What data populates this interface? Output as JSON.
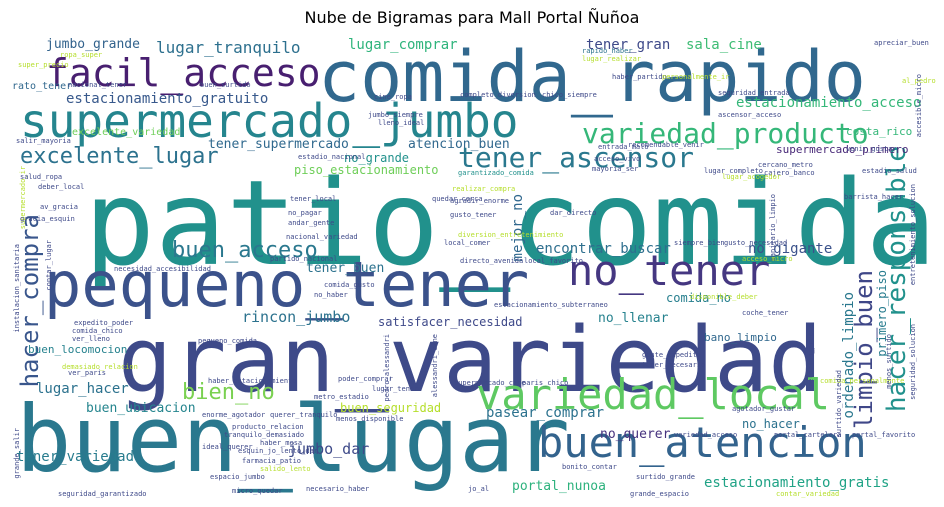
{
  "title": "Nube de Bigramas para Mall Portal Ñuñoa",
  "colors": {
    "background": "#ffffff",
    "palette": [
      "#440154",
      "#482878",
      "#3e4989",
      "#31688e",
      "#26828e",
      "#1f9e89",
      "#35b779",
      "#6ece58",
      "#b5de2b",
      "#fde725"
    ]
  },
  "words": [
    {
      "text": "patio_comida",
      "color": "#21918c"
    },
    {
      "text": "gran_variedad",
      "color": "#3e4a89"
    },
    {
      "text": "buen_lugar",
      "color": "#2a788e"
    },
    {
      "text": "comida_rapido",
      "color": "#31688e"
    },
    {
      "text": "pequeno_tener",
      "color": "#3b528b"
    },
    {
      "text": "supermercado_jumbo",
      "color": "#25858e"
    },
    {
      "text": "variedad_local",
      "color": "#5ec962"
    },
    {
      "text": "no_tener",
      "color": "#453781"
    },
    {
      "text": "buen_atencion",
      "color": "#33638d"
    },
    {
      "text": "facil_acceso",
      "color": "#481f70"
    },
    {
      "text": "variedad_producto",
      "color": "#35b779"
    },
    {
      "text": "tener_ascensor",
      "color": "#2a788e"
    },
    {
      "text": "hacer_responsable",
      "color": "#21918c"
    },
    {
      "text": "limpio_buen",
      "color": "#3f4788"
    },
    {
      "text": "hacer_compra",
      "color": "#39568c"
    },
    {
      "text": "excelente_lugar",
      "color": "#2c728e"
    },
    {
      "text": "buen_acceso",
      "color": "#2a788e"
    },
    {
      "text": "bien_no",
      "color": "#7ad151"
    },
    {
      "text": "estacionamiento_gratuito",
      "color": "#38598c"
    },
    {
      "text": "lugar_tranquilo",
      "color": "#2d708e"
    },
    {
      "text": "jumbo_grande",
      "color": "#33638d"
    },
    {
      "text": "lugar_comprar",
      "color": "#2fb47c"
    },
    {
      "text": "tener_gran",
      "color": "#3e4989"
    },
    {
      "text": "sala_cine",
      "color": "#3dbc74"
    },
    {
      "text": "estacionamiento_acceso",
      "color": "#35b779"
    },
    {
      "text": "supermercado_primero",
      "color": "#482878"
    },
    {
      "text": "tener_supermercado",
      "color": "#30698e"
    },
    {
      "text": "atencion_buen",
      "color": "#31688e"
    },
    {
      "text": "no_grande",
      "color": "#21918c"
    },
    {
      "text": "piso_estacionamiento",
      "color": "#6ece58"
    },
    {
      "text": "encontrar_buscar",
      "color": "#2e6f8e"
    },
    {
      "text": "no_gigante",
      "color": "#3b528b"
    },
    {
      "text": "tener_buen",
      "color": "#2c728e"
    },
    {
      "text": "comida_no",
      "color": "#277f8e"
    },
    {
      "text": "rincon_jumbo",
      "color": "#2c728e"
    },
    {
      "text": "satisfacer_necesidad",
      "color": "#3e4989"
    },
    {
      "text": "no_llenar",
      "color": "#26828e"
    },
    {
      "text": "ordenado_limpio",
      "color": "#2a788e"
    },
    {
      "text": "primero_piso",
      "color": "#287c8e"
    },
    {
      "text": "lugar_hacer",
      "color": "#2c728e"
    },
    {
      "text": "buen_ubicacion",
      "color": "#25858e"
    },
    {
      "text": "buen_seguridad",
      "color": "#b5de2b"
    },
    {
      "text": "pasear_comprar",
      "color": "#2c728e"
    },
    {
      "text": "no_querer",
      "color": "#46327e"
    },
    {
      "text": "no_hacer",
      "color": "#2c728e"
    },
    {
      "text": "tener_variedad",
      "color": "#287c8e"
    },
    {
      "text": "jumbo_dar",
      "color": "#3e4a89"
    },
    {
      "text": "portal_nunoa",
      "color": "#2db27d"
    },
    {
      "text": "estacionamiento_gratis",
      "color": "#20a386"
    },
    {
      "text": "mejor_no",
      "color": "#31688e"
    },
    {
      "text": "costa_rico",
      "color": "#35b779"
    },
    {
      "text": "buen_locomocion",
      "color": "#26828e"
    },
    {
      "text": "bano_limpio",
      "color": "#31688e"
    },
    {
      "text": "rato_tener",
      "color": "#31688e"
    },
    {
      "text": "excelente_variedad",
      "color": "#6ece58"
    },
    {
      "text": "salir_mayoria",
      "color": "#3e4989"
    },
    {
      "text": "cine_ropa",
      "color": "#3e4989"
    },
    {
      "text": "completo_diversion",
      "color": "#3e4989"
    },
    {
      "text": "chico_siempre",
      "color": "#3e4989"
    },
    {
      "text": "rapido_haber",
      "color": "#2c728e"
    },
    {
      "text": "lugar_realizar",
      "color": "#b5de2b"
    },
    {
      "text": "haber_partido",
      "color": "#3e4989"
    },
    {
      "text": "apreciar_buen",
      "color": "#3e4989"
    },
    {
      "text": "lleno_ideal",
      "color": "#3e4989"
    },
    {
      "text": "jumbo_siempre",
      "color": "#3e4989"
    },
    {
      "text": "estadio_nacional",
      "color": "#3e4989"
    },
    {
      "text": "recomendable_venir",
      "color": "#3e4989"
    },
    {
      "text": "cercano_metro",
      "color": "#3e4989"
    },
    {
      "text": "cajero_banco",
      "color": "#3e4989"
    },
    {
      "text": "estadio_salud",
      "color": "#3e4989"
    },
    {
      "text": "garantizado_comida",
      "color": "#21918c"
    },
    {
      "text": "mayoria_ser",
      "color": "#3e4989"
    },
    {
      "text": "lugar_completo",
      "color": "#3e4989"
    },
    {
      "text": "sanitario_limpio",
      "color": "#3e4989"
    },
    {
      "text": "barrista_hacer",
      "color": "#3e4989"
    },
    {
      "text": "tener_local",
      "color": "#3e4989"
    },
    {
      "text": "no_pagar",
      "color": "#3e4989"
    },
    {
      "text": "andar_gente",
      "color": "#3e4989"
    },
    {
      "text": "realizar_compra",
      "color": "#b5de2b"
    },
    {
      "text": "agradir_enorme",
      "color": "#3e4989"
    },
    {
      "text": "gusto_tener",
      "color": "#3e4989"
    },
    {
      "text": "dar_directo",
      "color": "#3e4989"
    },
    {
      "text": "siempre_bien",
      "color": "#3e4989"
    },
    {
      "text": "gusto_necesidad",
      "color": "#3e4989"
    },
    {
      "text": "local_comer",
      "color": "#3e4989"
    },
    {
      "text": "diversion_entretenimiento",
      "color": "#b5de2b"
    },
    {
      "text": "partido_nacional",
      "color": "#3e4989"
    },
    {
      "text": "directo_avenida",
      "color": "#3e4989"
    },
    {
      "text": "necesidad_accesibilidad",
      "color": "#3e4989"
    },
    {
      "text": "contar_lugar",
      "color": "#3e4989"
    },
    {
      "text": "comida_gusto",
      "color": "#3e4989"
    },
    {
      "text": "estacionamiento_subterraneo",
      "color": "#3e4989"
    },
    {
      "text": "no_haber",
      "color": "#3e4989"
    },
    {
      "text": "local_favorito",
      "color": "#3e4989"
    },
    {
      "text": "expedito_poder",
      "color": "#3e4989"
    },
    {
      "text": "comida_chico",
      "color": "#3e4989"
    },
    {
      "text": "ver_lleno",
      "color": "#3e4989"
    },
    {
      "text": "pequeno_comida",
      "color": "#3e4989"
    },
    {
      "text": "gente_expedito",
      "color": "#3e4989"
    },
    {
      "text": "tener_necesario",
      "color": "#3e4989"
    },
    {
      "text": "coche_tener",
      "color": "#3e4989"
    },
    {
      "text": "haber_estacionamiento",
      "color": "#3e4989"
    },
    {
      "text": "poder_comprar",
      "color": "#3e4989"
    },
    {
      "text": "supermercado_cine",
      "color": "#3e4989"
    },
    {
      "text": "paris_chico",
      "color": "#3e4989"
    },
    {
      "text": "lugar_tener",
      "color": "#3e4989"
    },
    {
      "text": "metro_estadio",
      "color": "#3e4989"
    },
    {
      "text": "enorme_agotador",
      "color": "#3e4989"
    },
    {
      "text": "querer_tranquilo",
      "color": "#3e4989"
    },
    {
      "text": "producto_relacion",
      "color": "#3e4989"
    },
    {
      "text": "tranquilo_demasiado",
      "color": "#3e4989"
    },
    {
      "text": "haber_mesa",
      "color": "#3e4989"
    },
    {
      "text": "esquin_jo_lento_dar",
      "color": "#3e4989"
    },
    {
      "text": "farmacia_patio",
      "color": "#3e4989"
    },
    {
      "text": "salido_lento",
      "color": "#b5de2b"
    },
    {
      "text": "ideal_querer",
      "color": "#3e4989"
    },
    {
      "text": "espacio_jumbo",
      "color": "#3e4989"
    },
    {
      "text": "micro_quedar",
      "color": "#3e4989"
    },
    {
      "text": "necesario_haber",
      "color": "#3e4989"
    },
    {
      "text": "jo_al",
      "color": "#3e4989"
    },
    {
      "text": "bonito_contar",
      "color": "#3e4989"
    },
    {
      "text": "surtido_grande",
      "color": "#3e4989"
    },
    {
      "text": "grande_espacio",
      "color": "#3e4989"
    },
    {
      "text": "variedad_acceso",
      "color": "#3e4989"
    },
    {
      "text": "portal_cartelera",
      "color": "#3e4989"
    },
    {
      "text": "portal_favorito",
      "color": "#3e4989"
    },
    {
      "text": "agotador_gustar",
      "color": "#3e4989"
    },
    {
      "text": "contar_variedad",
      "color": "#b5de2b"
    },
    {
      "text": "ropa_super",
      "color": "#b5de2b"
    },
    {
      "text": "super_precio",
      "color": "#b5de2b"
    },
    {
      "text": "nacional_tener",
      "color": "#3e4989"
    },
    {
      "text": "buen_surtido",
      "color": "#3e4989"
    },
    {
      "text": "supermercado_ir",
      "color": "#b5de2b"
    },
    {
      "text": "av_gracia",
      "color": "#3e4989"
    },
    {
      "text": "gracia_esquin",
      "color": "#3e4989"
    },
    {
      "text": "deber_local",
      "color": "#3e4989"
    },
    {
      "text": "salud_ropa",
      "color": "#3e4989"
    },
    {
      "text": "acceso_micro",
      "color": "#b5de2b"
    },
    {
      "text": "comida_personalmente",
      "color": "#b5de2b"
    },
    {
      "text": "personalmente_ir",
      "color": "#b5de2b"
    },
    {
      "text": "al_pedro",
      "color": "#b5de2b"
    },
    {
      "text": "accesible_micro",
      "color": "#3e4989"
    },
    {
      "text": "disponible_deber",
      "color": "#b5de2b"
    },
    {
      "text": "seguridad_entrada",
      "color": "#3e4989"
    },
    {
      "text": "ascensor_acceso",
      "color": "#3e4989"
    },
    {
      "text": "entrada_malo",
      "color": "#3e4989"
    },
    {
      "text": "venir_gustar",
      "color": "#3e4989"
    },
    {
      "text": "quedar_cerca",
      "color": "#3e4989"
    },
    {
      "text": "nacional_variedad",
      "color": "#3e4989"
    },
    {
      "text": "seguridad_garantizado",
      "color": "#3e4989"
    },
    {
      "text": "menos_disponible",
      "color": "#3e4989"
    },
    {
      "text": "grande_salir",
      "color": "#3e4989"
    },
    {
      "text": "instalacion_sanitaria",
      "color": "#3e4989"
    },
    {
      "text": "demasiado_relacion",
      "color": "#b5de2b"
    },
    {
      "text": "ver_paris",
      "color": "#3e4989"
    },
    {
      "text": "pedro_alessandri",
      "color": "#3e4989"
    },
    {
      "text": "alessandri_cine",
      "color": "#3e4989"
    },
    {
      "text": "seguridad_solucion",
      "color": "#3e4989"
    },
    {
      "text": "entretenimiento_solucion",
      "color": "#3e4989"
    },
    {
      "text": "lugar_acogedor",
      "color": "#b5de2b"
    },
    {
      "text": "relacion_precio",
      "color": "#3e4989"
    },
    {
      "text": "menos_surtido",
      "color": "#3e4989"
    },
    {
      "text": "acceso_vivo",
      "color": "#3e4989"
    },
    {
      "text": "surtido_variedad",
      "color": "#3e4989"
    }
  ]
}
